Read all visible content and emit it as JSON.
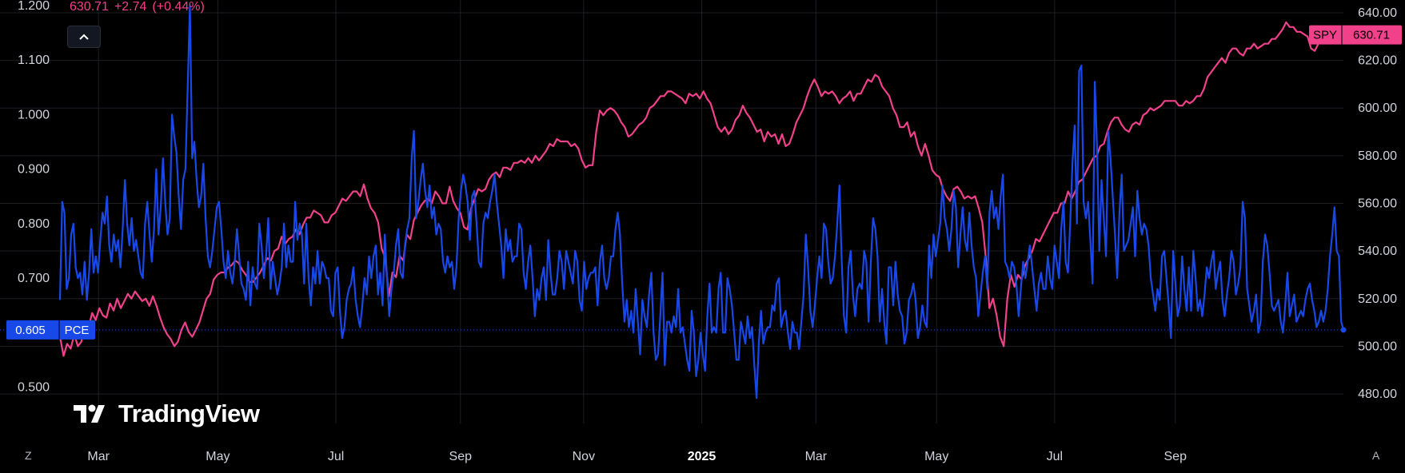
{
  "legend": {
    "price": "630.71",
    "change": "+2.74",
    "change_pct": "(+0.44%)"
  },
  "watermark": {
    "text": "TradingView"
  },
  "icons": {
    "collapse": "chevron-up-icon",
    "logo": "tradingview-logo-icon"
  },
  "corner_buttons": {
    "left": "Z",
    "right": "A"
  },
  "chart_data": {
    "type": "line",
    "grid": true,
    "legend_position": "top-left",
    "x_tick_labels": [
      "Mar",
      "May",
      "Jul",
      "Sep",
      "Nov",
      "2025",
      "Mar",
      "May",
      "Jul",
      "Sep"
    ],
    "y_left": {
      "tick_labels": [
        "1.200",
        "1.100",
        "1.000",
        "0.900",
        "0.800",
        "0.700",
        "0.500"
      ],
      "ticks": [
        1.2,
        1.1,
        1.0,
        0.9,
        0.8,
        0.7,
        0.5
      ],
      "range": [
        0.47,
        1.2
      ]
    },
    "y_right": {
      "tick_labels": [
        "640.00",
        "620.00",
        "600.00",
        "580.00",
        "560.00",
        "540.00",
        "520.00",
        "500.00",
        "480.00"
      ],
      "ticks": [
        640,
        620,
        600,
        580,
        560,
        540,
        520,
        500,
        480
      ],
      "range": [
        476,
        643
      ]
    },
    "series": [
      {
        "name": "PCE",
        "axis": "left",
        "color": "#1848e8",
        "last_value": "0.605",
        "last_value_num": 0.605,
        "x_range": [
          0,
          100
        ],
        "values": [
          0.66,
          0.84,
          0.82,
          0.68,
          0.7,
          0.78,
          0.8,
          0.72,
          0.7,
          0.71,
          0.67,
          0.73,
          0.66,
          0.71,
          0.79,
          0.71,
          0.74,
          0.71,
          0.77,
          0.82,
          0.8,
          0.85,
          0.76,
          0.73,
          0.78,
          0.75,
          0.77,
          0.72,
          0.79,
          0.88,
          0.8,
          0.76,
          0.81,
          0.75,
          0.77,
          0.74,
          0.71,
          0.7,
          0.8,
          0.84,
          0.78,
          0.73,
          0.79,
          0.9,
          0.78,
          0.83,
          0.92,
          0.84,
          0.78,
          0.81,
          1.0,
          0.96,
          0.93,
          0.85,
          0.79,
          0.88,
          0.9,
          1.05,
          1.2,
          0.92,
          0.95,
          0.88,
          0.83,
          0.85,
          0.91,
          0.81,
          0.74,
          0.72,
          0.75,
          0.79,
          0.83,
          0.84,
          0.79,
          0.73,
          0.7,
          0.75,
          0.71,
          0.69,
          0.73,
          0.79,
          0.74,
          0.69,
          0.68,
          0.66,
          0.73,
          0.65,
          0.72,
          0.69,
          0.68,
          0.8,
          0.76,
          0.7,
          0.74,
          0.81,
          0.68,
          0.73,
          0.7,
          0.67,
          0.69,
          0.72,
          0.8,
          0.72,
          0.76,
          0.73,
          0.73,
          0.84,
          0.77,
          0.8,
          0.78,
          0.69,
          0.8,
          0.7,
          0.65,
          0.72,
          0.69,
          0.75,
          0.69,
          0.73,
          0.72,
          0.7,
          0.7,
          0.64,
          0.63,
          0.71,
          0.72,
          0.64,
          0.59,
          0.61,
          0.66,
          0.68,
          0.69,
          0.72,
          0.66,
          0.63,
          0.61,
          0.65,
          0.7,
          0.67,
          0.74,
          0.7,
          0.74,
          0.76,
          0.67,
          0.71,
          0.65,
          0.78,
          0.7,
          0.63,
          0.68,
          0.71,
          0.76,
          0.79,
          0.71,
          0.7,
          0.76,
          0.79,
          0.81,
          0.92,
          0.97,
          0.81,
          0.84,
          0.88,
          0.91,
          0.86,
          0.83,
          0.87,
          0.81,
          0.83,
          0.78,
          0.8,
          0.79,
          0.73,
          0.71,
          0.74,
          0.72,
          0.73,
          0.68,
          0.72,
          0.81,
          0.86,
          0.89,
          0.87,
          0.84,
          0.77,
          0.85,
          0.86,
          0.8,
          0.73,
          0.72,
          0.8,
          0.82,
          0.81,
          0.84,
          0.86,
          0.89,
          0.84,
          0.8,
          0.76,
          0.7,
          0.79,
          0.75,
          0.77,
          0.73,
          0.74,
          0.74,
          0.8,
          0.79,
          0.71,
          0.68,
          0.73,
          0.76,
          0.7,
          0.63,
          0.68,
          0.66,
          0.7,
          0.72,
          0.66,
          0.77,
          0.71,
          0.67,
          0.67,
          0.7,
          0.75,
          0.73,
          0.68,
          0.75,
          0.73,
          0.71,
          0.69,
          0.75,
          0.73,
          0.66,
          0.64,
          0.73,
          0.68,
          0.7,
          0.71,
          0.71,
          0.72,
          0.65,
          0.73,
          0.76,
          0.7,
          0.68,
          0.7,
          0.74,
          0.74,
          0.79,
          0.82,
          0.78,
          0.69,
          0.62,
          0.66,
          0.61,
          0.64,
          0.6,
          0.68,
          0.62,
          0.56,
          0.66,
          0.63,
          0.61,
          0.67,
          0.71,
          0.6,
          0.55,
          0.56,
          0.63,
          0.71,
          0.54,
          0.62,
          0.62,
          0.6,
          0.63,
          0.61,
          0.68,
          0.6,
          0.61,
          0.58,
          0.55,
          0.53,
          0.64,
          0.6,
          0.52,
          0.55,
          0.6,
          0.56,
          0.53,
          0.63,
          0.69,
          0.6,
          0.61,
          0.6,
          0.68,
          0.71,
          0.6,
          0.6,
          0.7,
          0.68,
          0.65,
          0.6,
          0.55,
          0.55,
          0.62,
          0.6,
          0.58,
          0.63,
          0.59,
          0.61,
          0.54,
          0.48,
          0.58,
          0.64,
          0.58,
          0.6,
          0.61,
          0.61,
          0.65,
          0.64,
          0.69,
          0.7,
          0.61,
          0.63,
          0.64,
          0.6,
          0.57,
          0.62,
          0.6,
          0.6,
          0.57,
          0.62,
          0.67,
          0.78,
          0.72,
          0.64,
          0.61,
          0.65,
          0.7,
          0.74,
          0.7,
          0.8,
          0.79,
          0.73,
          0.69,
          0.7,
          0.74,
          0.8,
          0.87,
          0.73,
          0.63,
          0.6,
          0.72,
          0.75,
          0.67,
          0.63,
          0.68,
          0.69,
          0.68,
          0.75,
          0.73,
          0.62,
          0.73,
          0.81,
          0.79,
          0.74,
          0.62,
          0.68,
          0.62,
          0.58,
          0.72,
          0.72,
          0.65,
          0.73,
          0.67,
          0.64,
          0.63,
          0.58,
          0.6,
          0.66,
          0.67,
          0.69,
          0.66,
          0.59,
          0.61,
          0.65,
          0.62,
          0.61,
          0.76,
          0.7,
          0.78,
          0.74,
          0.77,
          0.8,
          0.87,
          0.81,
          0.79,
          0.75,
          0.79,
          0.86,
          0.83,
          0.72,
          0.78,
          0.83,
          0.77,
          0.75,
          0.82,
          0.76,
          0.72,
          0.7,
          0.63,
          0.67,
          0.71,
          0.74,
          0.68,
          0.82,
          0.86,
          0.81,
          0.83,
          0.79,
          0.85,
          0.89,
          0.73,
          0.72,
          0.7,
          0.73,
          0.72,
          0.69,
          0.63,
          0.68,
          0.73,
          0.7,
          0.73,
          0.76,
          0.72,
          0.68,
          0.64,
          0.69,
          0.71,
          0.68,
          0.68,
          0.74,
          0.7,
          0.68,
          0.76,
          0.73,
          0.7,
          0.79,
          0.84,
          0.73,
          0.71,
          0.8,
          0.91,
          0.98,
          0.8,
          1.08,
          1.09,
          0.84,
          0.81,
          0.84,
          0.77,
          0.69,
          1.06,
          0.94,
          0.75,
          0.88,
          0.81,
          0.74,
          0.97,
          0.92,
          0.85,
          0.78,
          0.7,
          0.82,
          0.89,
          0.75,
          0.76,
          0.77,
          0.8,
          0.83,
          0.74,
          0.86,
          0.81,
          0.78,
          0.8,
          0.79,
          0.76,
          0.7,
          0.67,
          0.64,
          0.68,
          0.66,
          0.74,
          0.75,
          0.7,
          0.65,
          0.59,
          0.75,
          0.69,
          0.63,
          0.65,
          0.74,
          0.68,
          0.64,
          0.72,
          0.64,
          0.75,
          0.7,
          0.64,
          0.66,
          0.63,
          0.67,
          0.72,
          0.7,
          0.73,
          0.75,
          0.68,
          0.71,
          0.73,
          0.66,
          0.63,
          0.67,
          0.7,
          0.75,
          0.73,
          0.67,
          0.69,
          0.72,
          0.84,
          0.81,
          0.68,
          0.65,
          0.62,
          0.64,
          0.67,
          0.6,
          0.62,
          0.73,
          0.78,
          0.76,
          0.71,
          0.65,
          0.64,
          0.65,
          0.66,
          0.62,
          0.6,
          0.65,
          0.71,
          0.63,
          0.65,
          0.67,
          0.62,
          0.63,
          0.64,
          0.63,
          0.66,
          0.68,
          0.69,
          0.66,
          0.64,
          0.61,
          0.62,
          0.64,
          0.62,
          0.64,
          0.68,
          0.74,
          0.78,
          0.83,
          0.75,
          0.74,
          0.62,
          0.605
        ]
      },
      {
        "name": "SPY",
        "axis": "right",
        "color": "#f0418a",
        "last_value": "630.71",
        "last_value_num": 630.71,
        "x_range": [
          0,
          98.6
        ],
        "values": [
          504,
          496,
          501,
          499,
          505,
          500,
          502,
          510,
          508,
          514,
          511,
          516,
          513,
          512,
          518,
          515,
          520,
          516,
          519,
          522,
          520,
          523,
          521,
          519,
          520,
          517,
          521,
          517,
          512,
          508,
          505,
          503,
          500,
          502,
          507,
          510,
          506,
          504,
          507,
          510,
          515,
          520,
          522,
          528,
          530,
          531,
          531,
          533,
          534,
          536,
          535,
          532,
          530,
          527,
          527,
          529,
          531,
          534,
          537,
          536,
          540,
          541,
          546,
          543,
          545,
          546,
          549,
          547,
          551,
          554,
          554,
          557,
          556,
          555,
          552,
          552,
          555,
          556,
          559,
          562,
          561,
          563,
          565,
          565,
          563,
          568,
          562,
          558,
          556,
          552,
          541,
          537,
          521,
          531,
          529,
          538,
          536,
          547,
          545,
          553,
          556,
          559,
          561,
          562,
          560,
          565,
          563,
          560,
          560,
          567,
          561,
          558,
          556,
          550,
          549,
          558,
          562,
          566,
          565,
          566,
          570,
          572,
          573,
          571,
          575,
          575,
          574,
          577,
          577,
          578,
          577,
          579,
          577,
          580,
          578,
          580,
          582,
          585,
          584,
          587,
          586,
          586,
          586,
          584,
          585,
          583,
          578,
          575,
          576,
          576,
          590,
          599,
          597,
          599,
          600,
          599,
          597,
          594,
          592,
          588,
          589,
          591,
          593,
          594,
          596,
          600,
          601,
          603,
          605,
          605,
          607,
          607,
          606,
          605,
          604,
          602,
          606,
          605,
          606,
          604,
          607,
          604,
          602,
          597,
          592,
          590,
          592,
          589,
          591,
          595,
          597,
          601,
          598,
          596,
          593,
          590,
          591,
          586,
          590,
          588,
          589,
          585,
          589,
          584,
          585,
          589,
          594,
          597,
          600,
          605,
          609,
          612,
          609,
          605,
          607,
          606,
          607,
          605,
          602,
          604,
          605,
          607,
          603,
          606,
          606,
          609,
          612,
          611,
          614,
          613,
          609,
          607,
          605,
          600,
          597,
          592,
          592,
          594,
          588,
          590,
          584,
          580,
          585,
          580,
          574,
          572,
          571,
          566,
          563,
          561,
          566,
          567,
          565,
          562,
          563,
          562,
          563,
          558,
          552,
          537,
          516,
          520,
          513,
          504,
          500,
          520,
          530,
          525,
          530,
          528,
          534,
          537,
          540,
          545,
          544,
          547,
          550,
          553,
          556,
          556,
          560,
          560,
          565,
          562,
          565,
          569,
          570,
          573,
          576,
          579,
          580,
          584,
          585,
          590,
          594,
          596,
          596,
          593,
          591,
          590,
          593,
          594,
          593,
          597,
          598,
          600,
          599,
          600,
          601,
          603,
          603,
          603,
          603,
          601,
          601,
          603,
          602,
          603,
          605,
          605,
          608,
          613,
          615,
          617,
          619,
          621,
          619,
          623,
          625,
          625,
          623,
          622,
          625,
          625,
          627,
          625,
          626,
          627,
          627,
          629,
          629,
          631,
          633,
          636,
          634,
          634,
          632,
          632,
          631,
          630,
          625,
          624,
          627,
          631,
          630.71
        ]
      }
    ]
  }
}
